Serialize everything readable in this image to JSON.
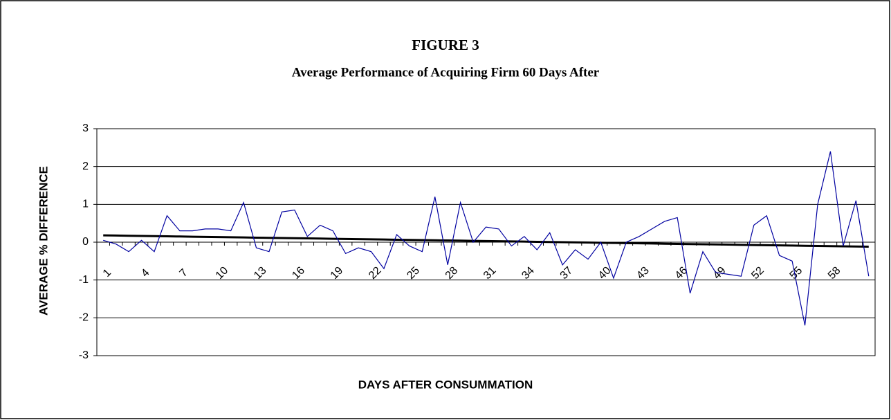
{
  "chart_data": {
    "type": "line",
    "title": "FIGURE 3",
    "subtitle": "Average Performance of Acquiring Firm 60 Days After",
    "x_label": "DAYS AFTER CONSUMMATION",
    "y_label": "AVERAGE % DIFFERENCE",
    "categories": [
      1,
      null,
      null,
      4,
      null,
      null,
      7,
      null,
      null,
      10,
      null,
      null,
      13,
      null,
      null,
      16,
      null,
      null,
      19,
      null,
      null,
      22,
      null,
      null,
      25,
      null,
      null,
      28,
      null,
      null,
      31,
      null,
      null,
      34,
      null,
      null,
      37,
      null,
      null,
      40,
      null,
      null,
      43,
      null,
      null,
      46,
      null,
      null,
      49,
      null,
      null,
      52,
      null,
      null,
      55,
      null,
      null,
      58,
      null,
      null,
      null
    ],
    "series": [
      {
        "color": "#0000a0",
        "values": [
          0.05,
          -0.05,
          -0.25,
          0.05,
          -0.25,
          0.7,
          0.3,
          0.3,
          0.35,
          0.35,
          0.3,
          1.05,
          -0.15,
          -0.25,
          0.8,
          0.85,
          0.15,
          0.45,
          0.3,
          -0.3,
          -0.15,
          -0.25,
          -0.7,
          0.2,
          -0.1,
          -0.25,
          1.2,
          -0.6,
          1.05,
          0.0,
          0.4,
          0.35,
          -0.1,
          0.15,
          -0.2,
          0.25,
          -0.6,
          -0.2,
          -0.45,
          0.0,
          -0.95,
          0.0,
          0.15,
          0.35,
          0.55,
          0.65,
          -1.35,
          -0.25,
          -0.8,
          -0.85,
          -0.9,
          0.45,
          0.7,
          -0.35,
          -0.5,
          -2.2,
          1.0,
          2.4,
          -0.1,
          1.1,
          -0.9
        ]
      },
      {
        "color": "#000000",
        "values": [
          0.18,
          0.175,
          0.17,
          0.165,
          0.16,
          0.155,
          0.15,
          0.145,
          0.14,
          0.135,
          0.13,
          0.125,
          0.12,
          0.115,
          0.11,
          0.105,
          0.1,
          0.095,
          0.09,
          0.085,
          0.08,
          0.075,
          0.07,
          0.065,
          0.06,
          0.055,
          0.05,
          0.045,
          0.04,
          0.035,
          0.03,
          0.025,
          0.02,
          0.015,
          0.01,
          0.005,
          0.0,
          -0.005,
          -0.01,
          -0.015,
          -0.02,
          -0.025,
          -0.03,
          -0.035,
          -0.04,
          -0.045,
          -0.05,
          -0.055,
          -0.06,
          -0.065,
          -0.07,
          -0.075,
          -0.08,
          -0.085,
          -0.09,
          -0.095,
          -0.1,
          -0.105,
          -0.11,
          -0.115,
          -0.12
        ]
      }
    ],
    "ylim": [
      -3,
      3
    ],
    "yticks": [
      -3,
      -2,
      -1,
      0,
      1,
      2,
      3
    ],
    "grid": true
  }
}
